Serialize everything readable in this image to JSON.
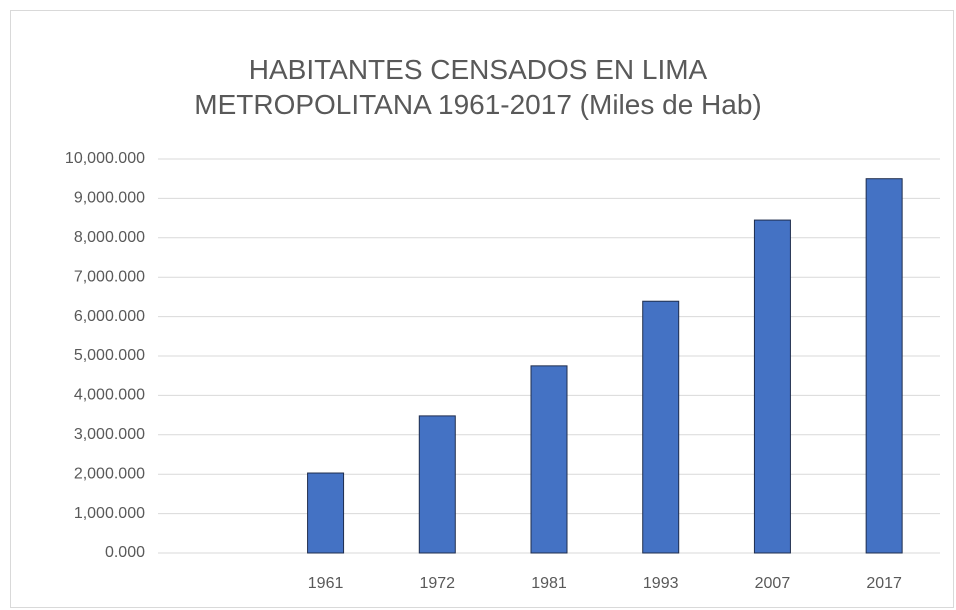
{
  "chart_data": {
    "type": "bar",
    "title": "HABITANTES CENSADOS EN LIMA METROPOLITANA 1961-2017 (Miles de Hab)",
    "categories": [
      null,
      "1961",
      "1972",
      "1981",
      "1993",
      "2007",
      "2017"
    ],
    "values": [
      null,
      2030,
      3480,
      4750,
      6390,
      8450,
      9500
    ],
    "color": "#4472c4",
    "ylim": [
      0,
      10000
    ],
    "yticks": [
      {
        "value": 0,
        "label": "0.000"
      },
      {
        "value": 1000,
        "label": "1,000.000"
      },
      {
        "value": 2000,
        "label": "2,000.000"
      },
      {
        "value": 3000,
        "label": "3,000.000"
      },
      {
        "value": 4000,
        "label": "4,000.000"
      },
      {
        "value": 5000,
        "label": "5,000.000"
      },
      {
        "value": 6000,
        "label": "6,000.000"
      },
      {
        "value": 7000,
        "label": "7,000.000"
      },
      {
        "value": 8000,
        "label": "8,000.000"
      },
      {
        "value": 9000,
        "label": "9,000.000"
      },
      {
        "value": 10000,
        "label": "10,000.000"
      }
    ],
    "grid": true
  }
}
